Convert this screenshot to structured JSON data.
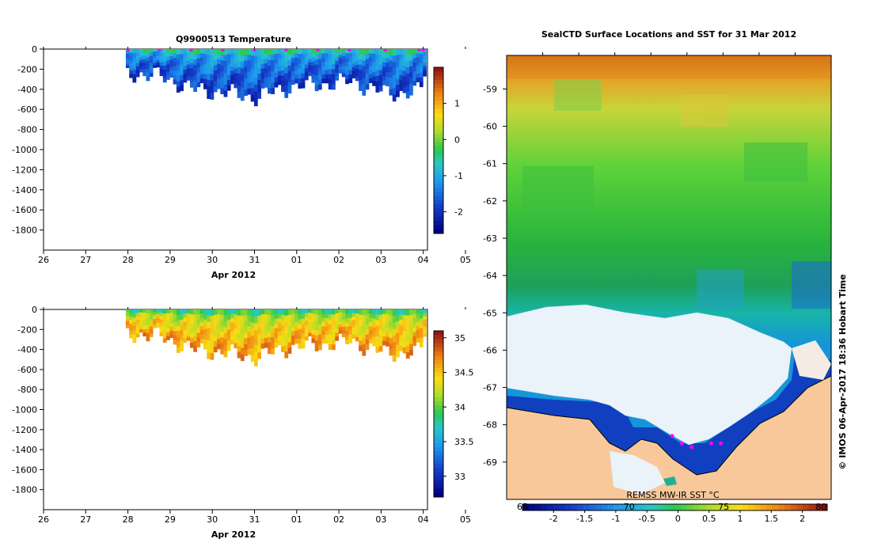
{
  "chart_data": [
    {
      "type": "heatmap",
      "title": "Q9900513  Temperature",
      "xlabel": "Apr 2012",
      "xticks": [
        "26",
        "27",
        "28",
        "29",
        "30",
        "31",
        "01",
        "02",
        "03",
        "04",
        "05"
      ],
      "yticks": [
        "0",
        "-200",
        "-400",
        "-600",
        "-800",
        "-1000",
        "-1200",
        "-1400",
        "-1600",
        "-1800"
      ],
      "xlim": [
        0,
        9.1
      ],
      "ylim": [
        -2000,
        0
      ],
      "colorbar": {
        "ticks": [
          "1",
          "0",
          "-1",
          "-2"
        ],
        "tick_values": [
          1,
          0,
          -1,
          -2
        ],
        "range": [
          -2.6,
          2.0
        ]
      },
      "profiles_x": [
        2.0,
        2.75,
        3.5,
        4.25,
        5.0,
        5.75,
        6.5,
        7.25,
        8.1,
        8.9,
        9.0
      ],
      "profile_depths": [
        -240,
        -270,
        -400,
        -430,
        -480,
        -380,
        -350,
        -320,
        -440,
        -420,
        -210
      ],
      "surface_value": -0.6,
      "deep_value": -1.9
    },
    {
      "type": "heatmap",
      "title": "",
      "xlabel": "Apr 2012",
      "xticks": [
        "26",
        "27",
        "28",
        "29",
        "30",
        "31",
        "01",
        "02",
        "03",
        "04",
        "05"
      ],
      "yticks": [
        "0",
        "-200",
        "-400",
        "-600",
        "-800",
        "-1000",
        "-1200",
        "-1400",
        "-1600",
        "-1800"
      ],
      "xlim": [
        0,
        9.1
      ],
      "ylim": [
        -2000,
        0
      ],
      "colorbar": {
        "ticks": [
          "35",
          "34.5",
          "34",
          "33.5",
          "33"
        ],
        "tick_values": [
          35,
          34.5,
          34,
          33.5,
          33
        ],
        "range": [
          32.7,
          35.1
        ]
      },
      "profiles_x": [
        2.0,
        2.75,
        3.5,
        4.25,
        5.0,
        5.75,
        6.5,
        7.25,
        8.1,
        8.9,
        9.0
      ],
      "profile_depths": [
        -240,
        -270,
        -400,
        -430,
        -480,
        -380,
        -350,
        -320,
        -440,
        -420,
        -210
      ],
      "surface_value": 33.9,
      "deep_value": 34.65
    },
    {
      "type": "heatmap",
      "title": "SealCTD Surface Locations and SST for 31 Mar 2012",
      "yticks": [
        "-59",
        "-60",
        "-61",
        "-62",
        "-63",
        "-64",
        "-65",
        "-66",
        "-67",
        "-68",
        "-69"
      ],
      "ylim": [
        -70,
        -58.1
      ],
      "source_label": "REMSS MW-IR SST °C",
      "side_label": "© IMOS 06-Apr-2017 18:36 Hobart Time",
      "colorbar": {
        "ticks": [
          "-2",
          "-1.5",
          "-1",
          "-0.5",
          "0",
          "0.5",
          "1",
          "1.5",
          "2"
        ],
        "tick_values": [
          -2,
          -1.5,
          -1,
          -0.5,
          0,
          0.5,
          1,
          1.5,
          2
        ],
        "range": [
          -2.5,
          2.4
        ],
        "overlay_ticks": [
          "65",
          "70",
          "75",
          "80"
        ],
        "overlay_positions": [
          0.0,
          0.35,
          0.66,
          0.98
        ]
      },
      "track_points": [
        {
          "lon": 0.51,
          "lat": -68.3
        },
        {
          "lon": 0.54,
          "lat": -68.5
        },
        {
          "lon": 0.57,
          "lat": -68.6
        },
        {
          "lon": 0.63,
          "lat": -68.5
        },
        {
          "lon": 0.66,
          "lat": -68.5
        }
      ]
    }
  ],
  "colors": {
    "land": "#f8c89b",
    "ice": "#eaf2fa",
    "deep_blue": "#1040c0",
    "marker": "#ff00ff"
  }
}
